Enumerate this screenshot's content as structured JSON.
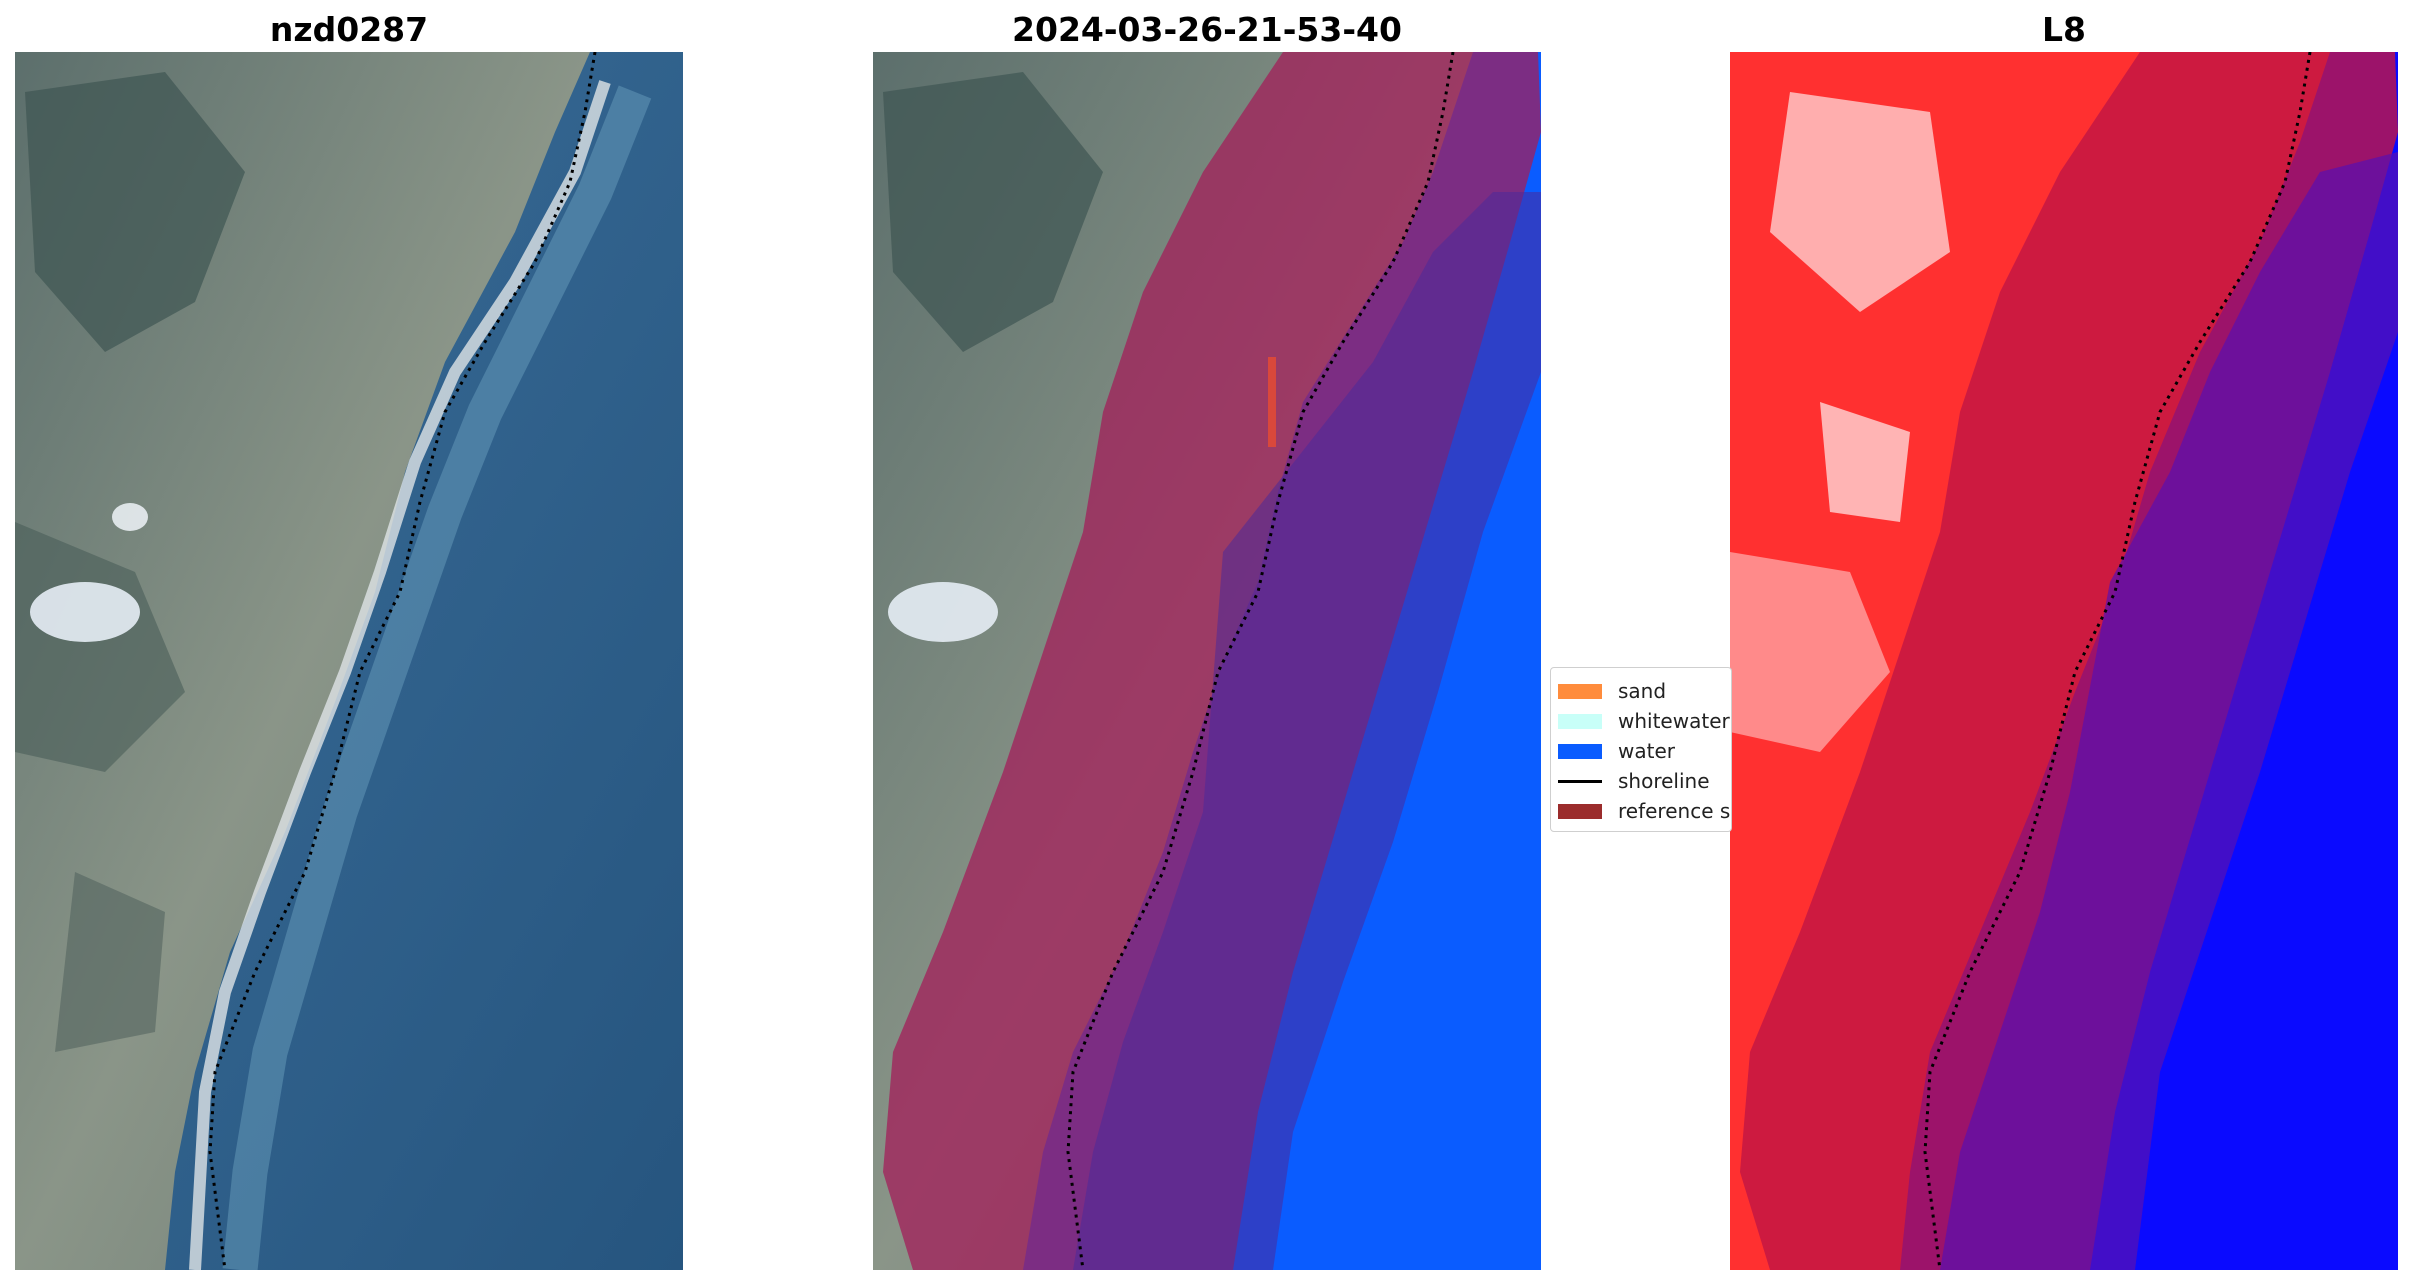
{
  "panels": [
    {
      "title": "nzd0287"
    },
    {
      "title": "2024-03-26-21-53-40"
    },
    {
      "title": "L8"
    }
  ],
  "legend": {
    "items": [
      {
        "label": "sand",
        "kind": "patch",
        "color": "#ff8c3c"
      },
      {
        "label": "whitewater",
        "kind": "patch",
        "color": "#c8fff8"
      },
      {
        "label": "water",
        "kind": "patch",
        "color": "#0a5cff"
      },
      {
        "label": "shoreline",
        "kind": "line",
        "color": "#000000"
      },
      {
        "label": "reference shoreline buffer",
        "kind": "patch",
        "color": "#9b2c2c"
      }
    ]
  },
  "colors": {
    "ocean": "#2f5f8e",
    "land": "#7d8a83",
    "water_class": "#0a5cff",
    "buffer": "#a31d5a",
    "index_land": "#ff2a2a",
    "index_water": "#0a0aff"
  }
}
